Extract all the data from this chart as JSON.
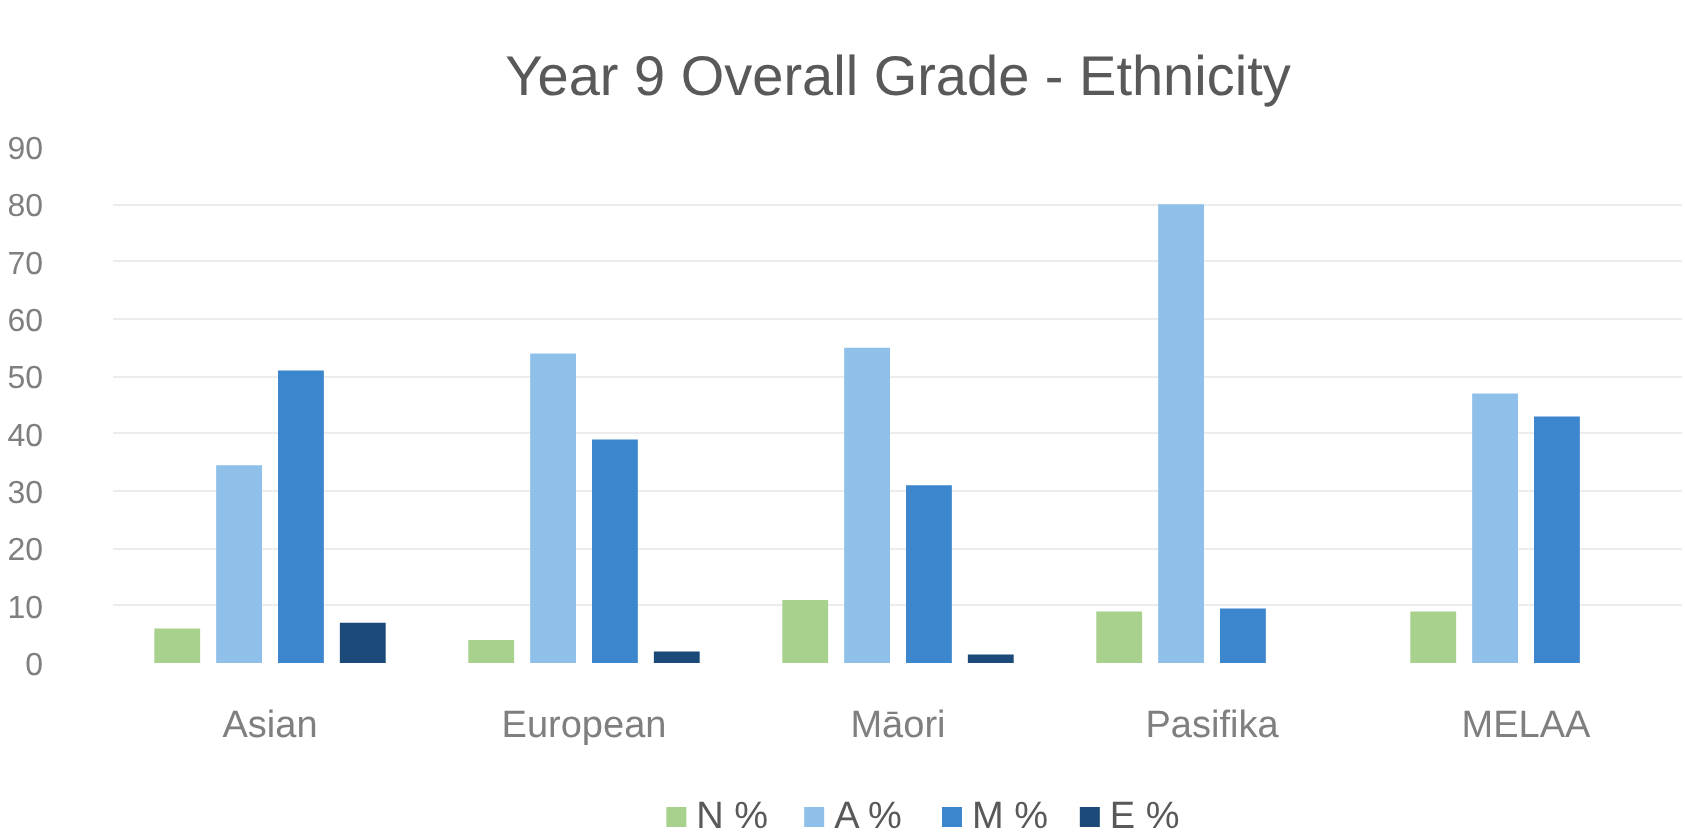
{
  "chart_data": {
    "type": "bar",
    "title": "Year 9 Overall Grade - Ethnicity",
    "categories": [
      "Asian",
      "European",
      "Māori",
      "Pasifika",
      "MELAA"
    ],
    "series": [
      {
        "name": "N %",
        "color": "#a9d18e",
        "values": [
          6,
          4,
          11,
          9,
          9
        ]
      },
      {
        "name": "A %",
        "color": "#8fc0ea",
        "values": [
          34.5,
          54,
          55,
          80,
          47
        ]
      },
      {
        "name": "M %",
        "color": "#3b86cc",
        "values": [
          51,
          39,
          31,
          9.5,
          43
        ]
      },
      {
        "name": "E %",
        "color": "#1c4a78",
        "values": [
          7,
          2,
          1.5,
          null,
          null
        ]
      }
    ],
    "ylim": [
      0,
      90
    ],
    "yticks": [
      0,
      10,
      20,
      30,
      40,
      50,
      60,
      70,
      80,
      90
    ],
    "grid": "y",
    "legend": "bottom"
  }
}
